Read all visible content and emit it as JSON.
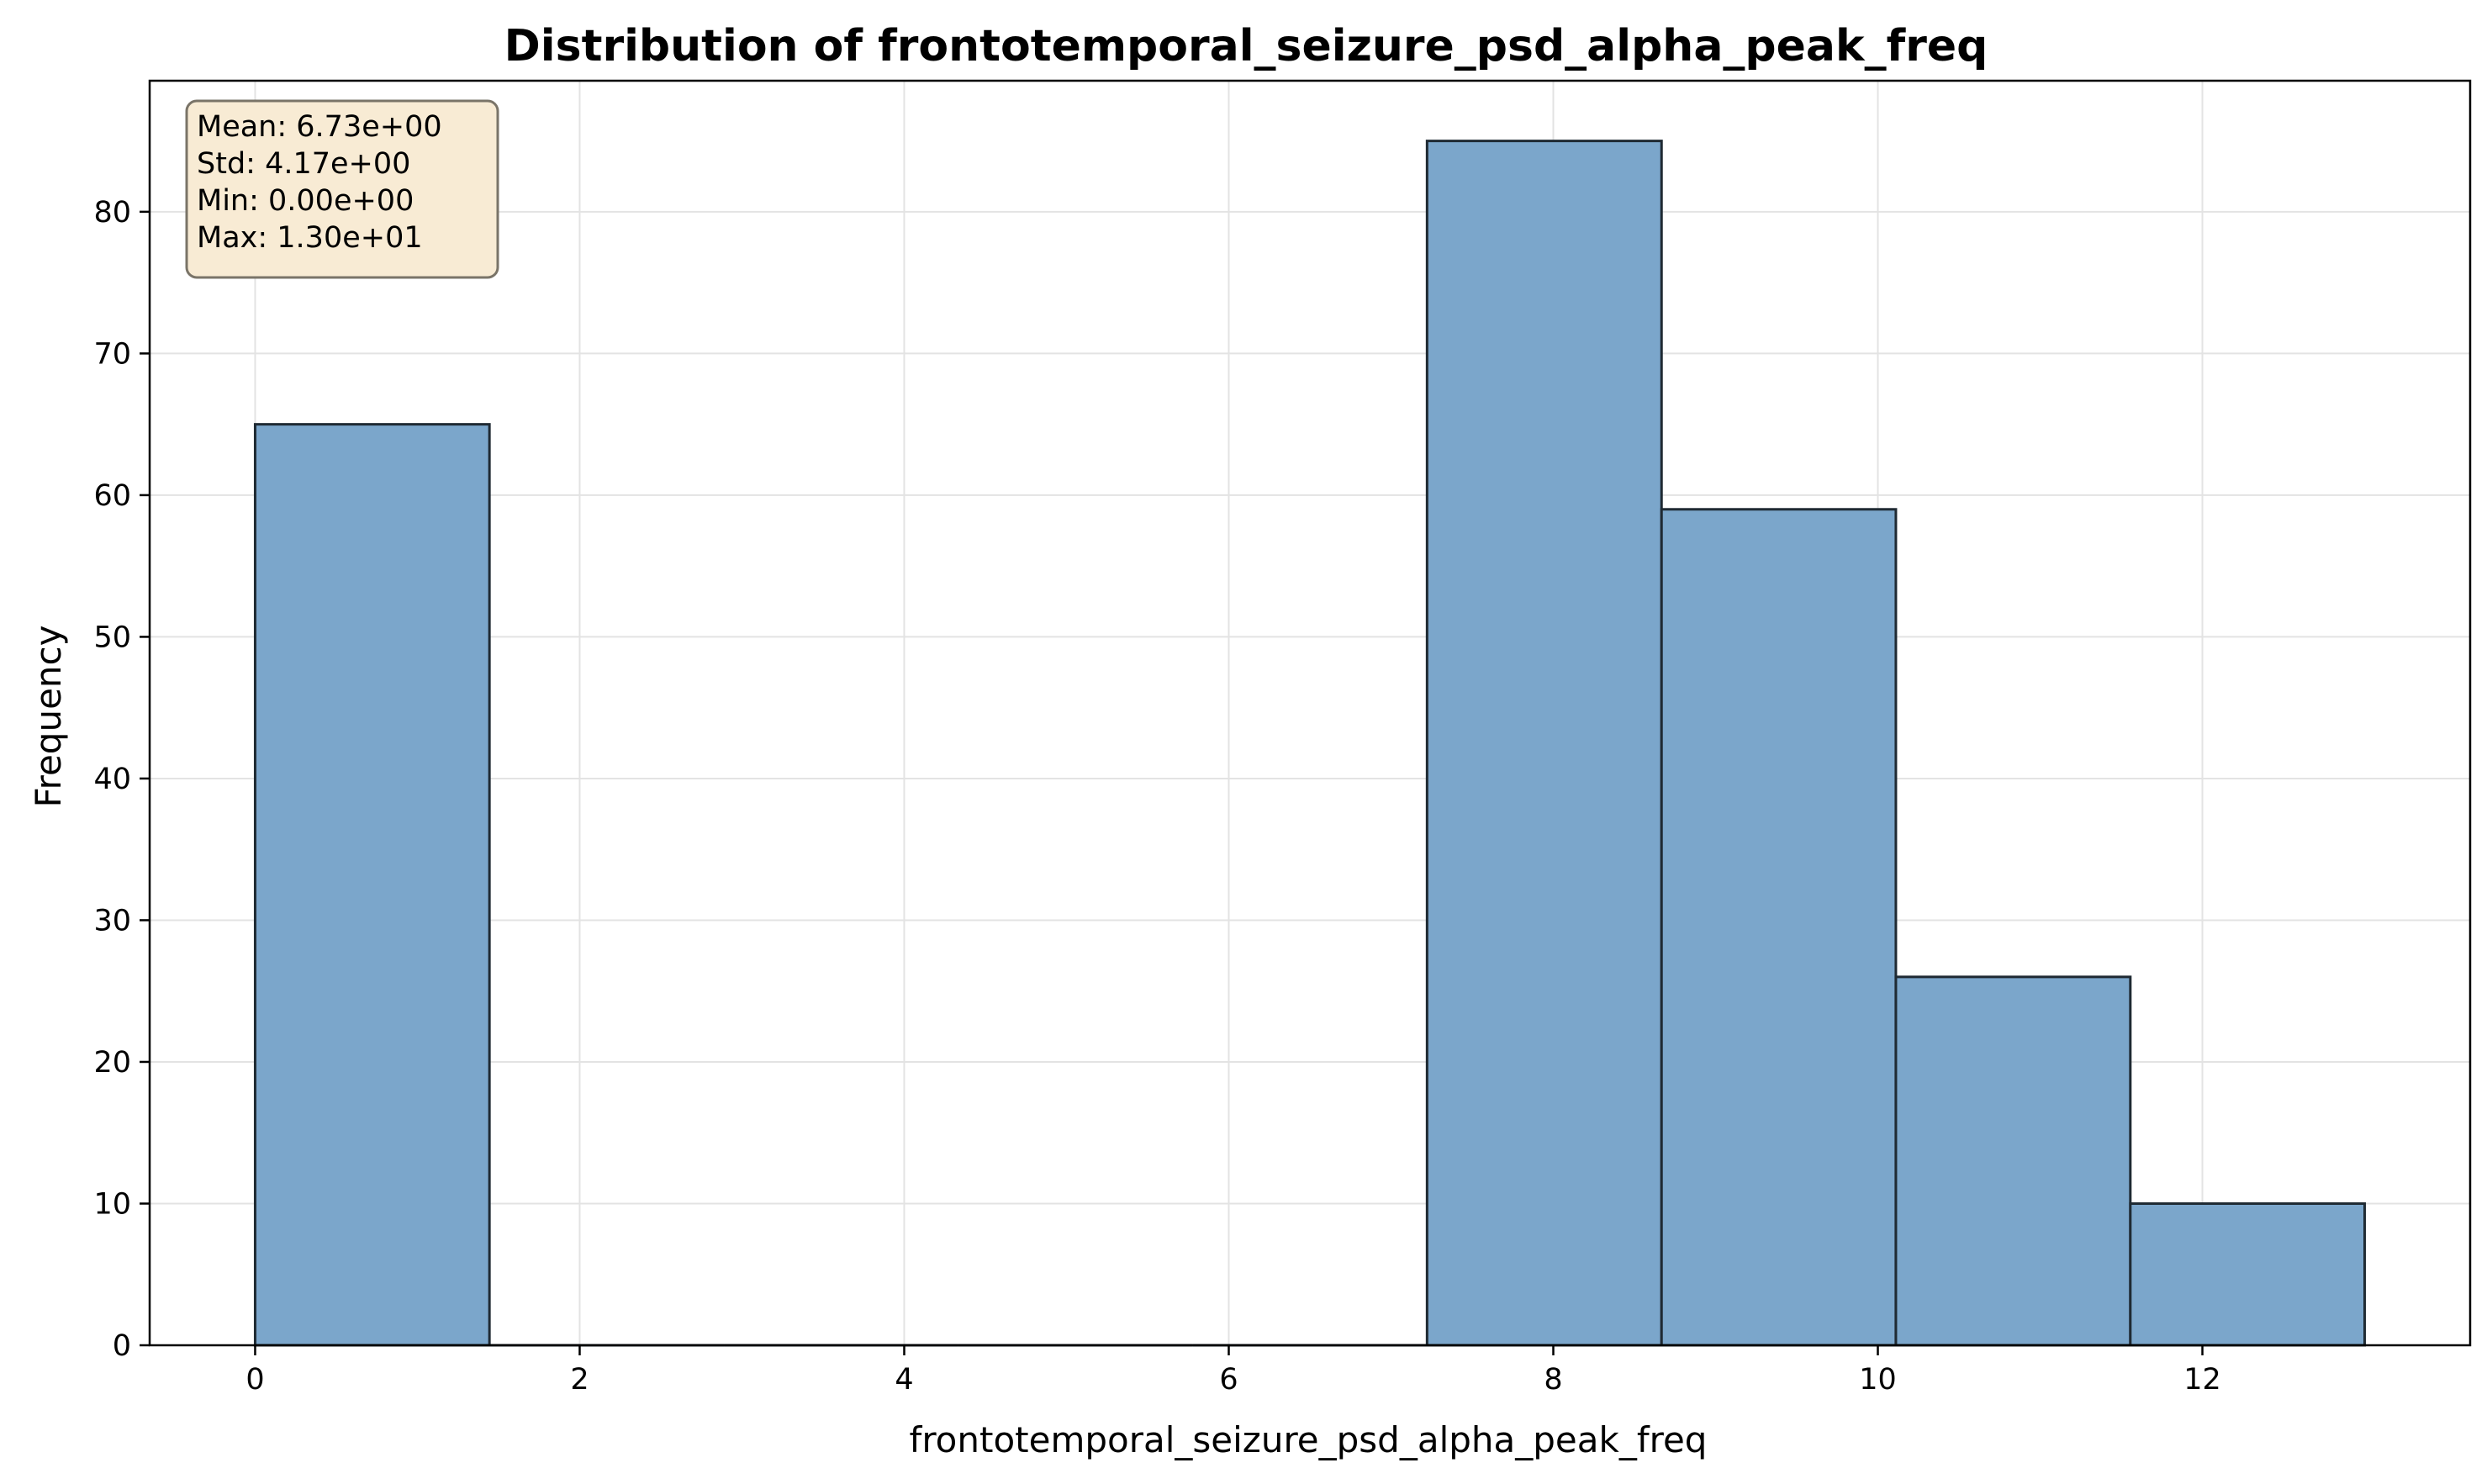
{
  "chart_data": {
    "type": "bar",
    "title": "Distribution of frontotemporal_seizure_psd_alpha_peak_freq",
    "xlabel": "frontotemporal_seizure_psd_alpha_peak_freq",
    "ylabel": "Frequency",
    "xlim": [
      -0.65,
      13.65
    ],
    "ylim": [
      0,
      89.25
    ],
    "xticks": [
      0,
      2,
      4,
      6,
      8,
      10,
      12
    ],
    "yticks": [
      0,
      10,
      20,
      30,
      40,
      50,
      60,
      70,
      80
    ],
    "grid": true,
    "bins": [
      {
        "x0": 0.0,
        "x1": 1.444,
        "count": 65
      },
      {
        "x0": 1.444,
        "x1": 2.889,
        "count": 0
      },
      {
        "x0": 2.889,
        "x1": 4.333,
        "count": 0
      },
      {
        "x0": 4.333,
        "x1": 5.778,
        "count": 0
      },
      {
        "x0": 5.778,
        "x1": 7.222,
        "count": 0
      },
      {
        "x0": 7.222,
        "x1": 8.667,
        "count": 85
      },
      {
        "x0": 8.667,
        "x1": 10.111,
        "count": 59
      },
      {
        "x0": 10.111,
        "x1": 11.556,
        "count": 26
      },
      {
        "x0": 11.556,
        "x1": 13.0,
        "count": 10
      }
    ],
    "bar_color": "#7ba6cb",
    "edge_color": "#1f2a33",
    "stats_box": {
      "lines": [
        "Mean: 6.73e+00",
        "Std: 4.17e+00",
        "Min: 0.00e+00",
        "Max: 1.30e+01"
      ],
      "placement": "top-left",
      "background": "#f8ebd4"
    }
  }
}
